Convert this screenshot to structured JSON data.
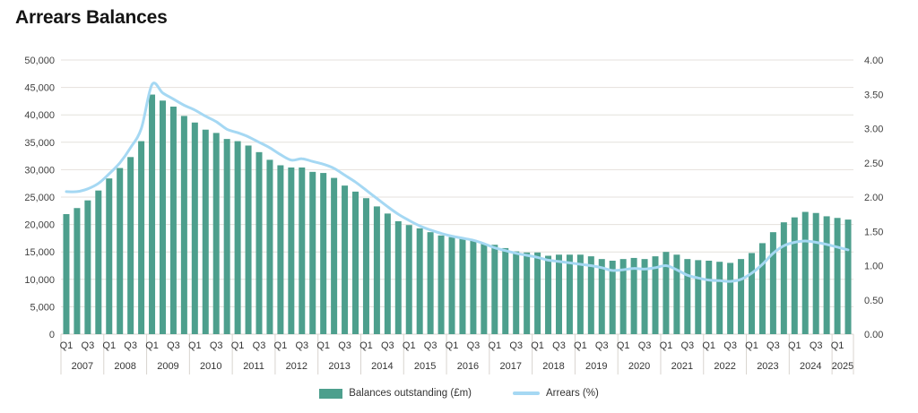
{
  "title": "Arrears Balances",
  "colors": {
    "bar": "#4D9F8D",
    "line": "#A5D8F3",
    "gridline": "#e4e1dc",
    "axis_line": "#d8d4cf",
    "tick_text": "#3f3f3f"
  },
  "chart_data": {
    "type": "bar+line combo",
    "x": [
      "2007 Q1",
      "2007 Q2",
      "2007 Q3",
      "2007 Q4",
      "2008 Q1",
      "2008 Q2",
      "2008 Q3",
      "2008 Q4",
      "2009 Q1",
      "2009 Q2",
      "2009 Q3",
      "2009 Q4",
      "2010 Q1",
      "2010 Q2",
      "2010 Q3",
      "2010 Q4",
      "2011 Q1",
      "2011 Q2",
      "2011 Q3",
      "2011 Q4",
      "2012 Q1",
      "2012 Q2",
      "2012 Q3",
      "2012 Q4",
      "2013 Q1",
      "2013 Q2",
      "2013 Q3",
      "2013 Q4",
      "2014 Q1",
      "2014 Q2",
      "2014 Q3",
      "2014 Q4",
      "2015 Q1",
      "2015 Q2",
      "2015 Q3",
      "2015 Q4",
      "2016 Q1",
      "2016 Q2",
      "2016 Q3",
      "2016 Q4",
      "2017 Q1",
      "2017 Q2",
      "2017 Q3",
      "2017 Q4",
      "2018 Q1",
      "2018 Q2",
      "2018 Q3",
      "2018 Q4",
      "2019 Q1",
      "2019 Q2",
      "2019 Q3",
      "2019 Q4",
      "2020 Q1",
      "2020 Q2",
      "2020 Q3",
      "2020 Q4",
      "2021 Q1",
      "2021 Q2",
      "2021 Q3",
      "2021 Q4",
      "2022 Q1",
      "2022 Q2",
      "2022 Q3",
      "2022 Q4",
      "2023 Q1",
      "2023 Q2",
      "2023 Q3",
      "2023 Q4",
      "2024 Q1",
      "2024 Q2",
      "2024 Q3",
      "2024 Q4",
      "2025 Q1",
      "2025 Q2"
    ],
    "series": [
      {
        "name": "Balances outstanding (£m)",
        "type": "bar",
        "axis": "left",
        "color": "#4D9F8D",
        "values": [
          21900,
          23000,
          24400,
          26200,
          28400,
          30300,
          32300,
          35200,
          43700,
          42600,
          41500,
          39800,
          38600,
          37300,
          36700,
          35600,
          35200,
          34400,
          33200,
          31800,
          30800,
          30400,
          30400,
          29600,
          29400,
          28500,
          27100,
          26000,
          24800,
          23300,
          22000,
          20600,
          19900,
          19300,
          18600,
          18000,
          17700,
          17600,
          17200,
          16500,
          16300,
          15700,
          15100,
          14900,
          14900,
          14300,
          14500,
          14500,
          14500,
          14200,
          13700,
          13400,
          13700,
          13900,
          13700,
          14200,
          15000,
          14500,
          13700,
          13500,
          13400,
          13200,
          13000,
          13700,
          14800,
          16600,
          18600,
          20400,
          21300,
          22300,
          22100,
          21500,
          21200,
          20900
        ]
      },
      {
        "name": "Arrears (%)",
        "type": "line",
        "axis": "right",
        "color": "#A5D8F3",
        "values": [
          2.08,
          2.08,
          2.12,
          2.2,
          2.34,
          2.5,
          2.72,
          3.0,
          3.64,
          3.52,
          3.43,
          3.34,
          3.27,
          3.18,
          3.1,
          2.99,
          2.94,
          2.88,
          2.8,
          2.72,
          2.62,
          2.54,
          2.56,
          2.52,
          2.48,
          2.42,
          2.32,
          2.22,
          2.1,
          1.98,
          1.86,
          1.75,
          1.66,
          1.58,
          1.52,
          1.47,
          1.43,
          1.4,
          1.37,
          1.32,
          1.26,
          1.22,
          1.18,
          1.15,
          1.12,
          1.08,
          1.06,
          1.04,
          1.02,
          1.0,
          0.97,
          0.93,
          0.94,
          0.96,
          0.95,
          0.97,
          1.0,
          0.94,
          0.86,
          0.82,
          0.79,
          0.78,
          0.77,
          0.8,
          0.89,
          1.02,
          1.18,
          1.29,
          1.34,
          1.36,
          1.34,
          1.31,
          1.27,
          1.23
        ]
      }
    ],
    "left_axis": {
      "min": 0,
      "max": 50000,
      "step": 5000,
      "tick_labels": [
        "0",
        "5,000",
        "10,000",
        "15,000",
        "20,000",
        "25,000",
        "30,000",
        "35,000",
        "40,000",
        "45,000",
        "50,000"
      ]
    },
    "right_axis": {
      "min": 0,
      "max": 4,
      "step": 0.5,
      "tick_labels": [
        "0.00",
        "0.50",
        "1.00",
        "1.50",
        "2.00",
        "2.50",
        "3.00",
        "3.50",
        "4.00"
      ]
    },
    "x_axis": {
      "years": [
        "2007",
        "2008",
        "2009",
        "2010",
        "2011",
        "2012",
        "2013",
        "2014",
        "2015",
        "2016",
        "2017",
        "2018",
        "2019",
        "2020",
        "2021",
        "2022",
        "2023",
        "2024",
        "2025"
      ],
      "quarter_tick_labels": [
        "Q1",
        "Q3"
      ],
      "quarters_per_year": 4,
      "last_year_quarters": 2
    },
    "legend_position": "bottom-center",
    "grid": "horizontal-only"
  },
  "legend": {
    "bar_label": "Balances outstanding (£m)",
    "line_label": "Arrears (%)"
  }
}
